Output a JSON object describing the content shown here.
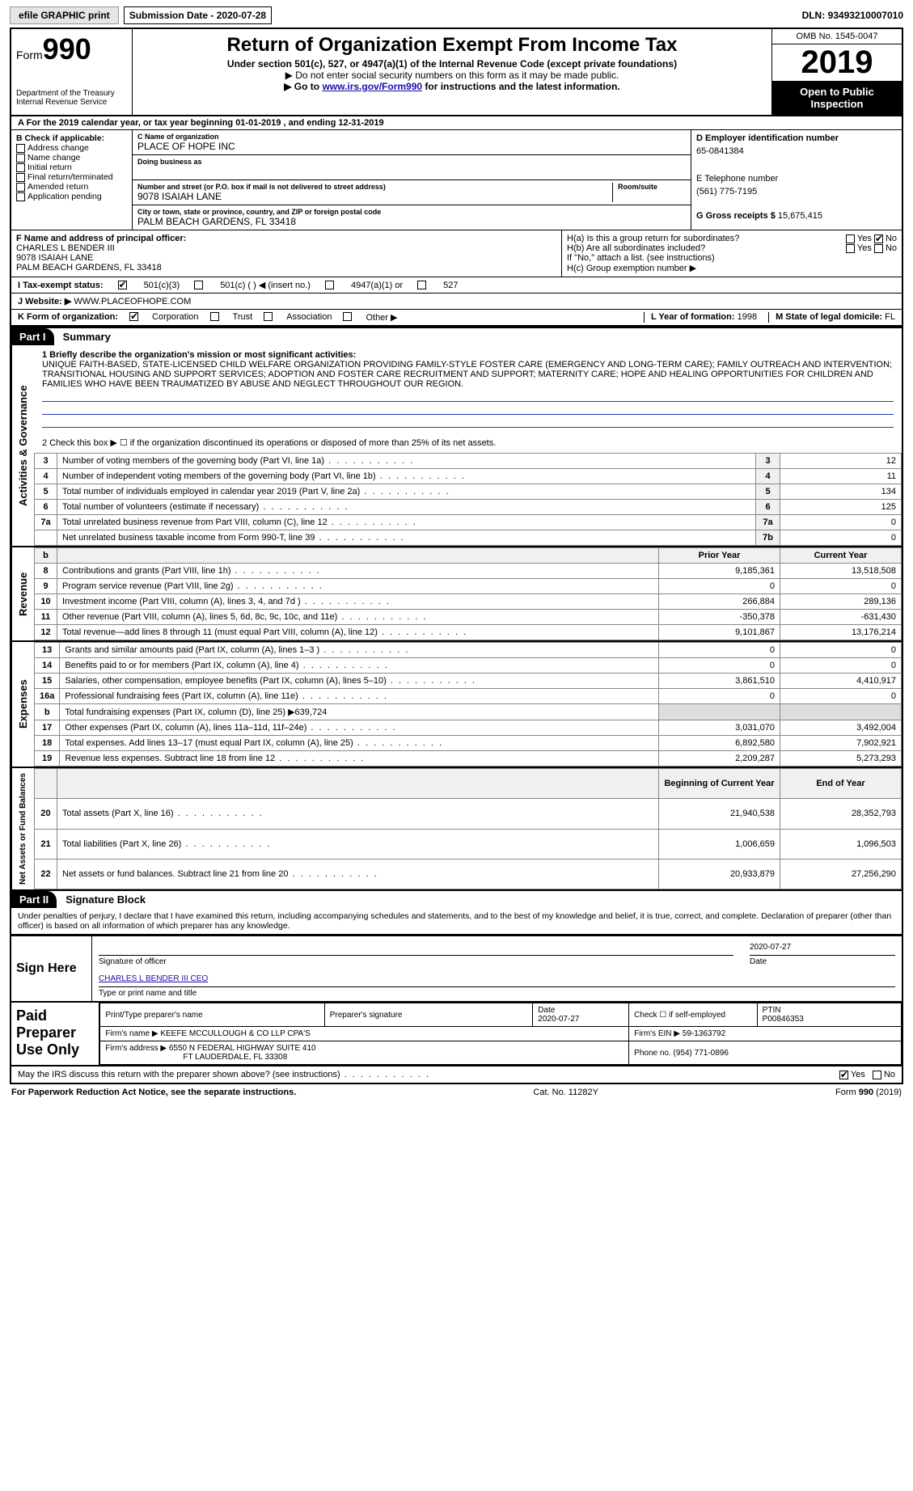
{
  "topbar": {
    "efile": "efile GRAPHIC print",
    "subdate_label": "Submission Date - ",
    "subdate": "2020-07-28",
    "dln_label": "DLN: ",
    "dln": "93493210007010"
  },
  "header": {
    "form_prefix": "Form",
    "form_no": "990",
    "dept": "Department of the Treasury\nInternal Revenue Service",
    "title": "Return of Organization Exempt From Income Tax",
    "sub1": "Under section 501(c), 527, or 4947(a)(1) of the Internal Revenue Code (except private foundations)",
    "sub2": "▶ Do not enter social security numbers on this form as it may be made public.",
    "sub3_pre": "▶ Go to ",
    "sub3_link": "www.irs.gov/Form990",
    "sub3_post": " for instructions and the latest information.",
    "omb": "OMB No. 1545-0047",
    "year": "2019",
    "open": "Open to Public Inspection"
  },
  "rowA": "A For the 2019 calendar year, or tax year beginning 01-01-2019     , and ending 12-31-2019",
  "boxB": {
    "title": "B Check if applicable:",
    "items": [
      "Address change",
      "Name change",
      "Initial return",
      "Final return/terminated",
      "Amended return",
      "Application pending"
    ]
  },
  "boxC": {
    "name_label": "C Name of organization",
    "name": "PLACE OF HOPE INC",
    "dba_label": "Doing business as",
    "addr_label": "Number and street (or P.O. box if mail is not delivered to street address)",
    "addr": "9078 ISAIAH LANE",
    "room_label": "Room/suite",
    "city_label": "City or town, state or province, country, and ZIP or foreign postal code",
    "city": "PALM BEACH GARDENS, FL  33418"
  },
  "boxD": {
    "label": "D Employer identification number",
    "val": "65-0841384"
  },
  "boxE": {
    "label": "E Telephone number",
    "val": "(561) 775-7195"
  },
  "boxG": {
    "label": "G Gross receipts $ ",
    "val": "15,675,415"
  },
  "boxF": {
    "label": "F  Name and address of principal officer:",
    "name": "CHARLES L BENDER III",
    "addr1": "9078 ISAIAH LANE",
    "addr2": "PALM BEACH GARDENS, FL  33418"
  },
  "boxH": {
    "a": "H(a)  Is this a group return for subordinates?",
    "b": "H(b)  Are all subordinates included?",
    "bnote": "If \"No,\" attach a list. (see instructions)",
    "c": "H(c)  Group exemption number ▶"
  },
  "rowI": {
    "label": "I   Tax-exempt status:",
    "opts": [
      "501(c)(3)",
      "501(c) (  ) ◀ (insert no.)",
      "4947(a)(1) or",
      "527"
    ]
  },
  "rowJ": {
    "label": "J   Website: ▶ ",
    "val": "WWW.PLACEOFHOPE.COM"
  },
  "rowK": {
    "label": "K Form of organization:",
    "opts": [
      "Corporation",
      "Trust",
      "Association",
      "Other ▶"
    ]
  },
  "rowL": {
    "label": "L Year of formation: ",
    "val": "1998"
  },
  "rowM": {
    "label": "M State of legal domicile: ",
    "val": "FL"
  },
  "part1": {
    "hdr": "Part I",
    "title": "Summary",
    "line1_label": "1  Briefly describe the organization's mission or most significant activities:",
    "mission": "UNIQUE FAITH-BASED, STATE-LICENSED CHILD WELFARE ORGANIZATION PROVIDING FAMILY-STYLE FOSTER CARE (EMERGENCY AND LONG-TERM CARE); FAMILY OUTREACH AND INTERVENTION; TRANSITIONAL HOUSING AND SUPPORT SERVICES; ADOPTION AND FOSTER CARE RECRUITMENT AND SUPPORT; MATERNITY CARE; HOPE AND HEALING OPPORTUNITIES FOR CHILDREN AND FAMILIES WHO HAVE BEEN TRAUMATIZED BY ABUSE AND NEGLECT THROUGHOUT OUR REGION.",
    "line2": "2   Check this box ▶ ☐  if the organization discontinued its operations or disposed of more than 25% of its net assets.",
    "gov_rows": [
      {
        "n": "3",
        "t": "Number of voting members of the governing body (Part VI, line 1a)",
        "c": "3",
        "v": "12"
      },
      {
        "n": "4",
        "t": "Number of independent voting members of the governing body (Part VI, line 1b)",
        "c": "4",
        "v": "11"
      },
      {
        "n": "5",
        "t": "Total number of individuals employed in calendar year 2019 (Part V, line 2a)",
        "c": "5",
        "v": "134"
      },
      {
        "n": "6",
        "t": "Total number of volunteers (estimate if necessary)",
        "c": "6",
        "v": "125"
      },
      {
        "n": "7a",
        "t": "Total unrelated business revenue from Part VIII, column (C), line 12",
        "c": "7a",
        "v": "0"
      },
      {
        "n": "",
        "t": "Net unrelated business taxable income from Form 990-T, line 39",
        "c": "7b",
        "v": "0"
      }
    ],
    "rev_hdr": [
      "b",
      "",
      "Prior Year",
      "Current Year"
    ],
    "rev_rows": [
      {
        "n": "8",
        "t": "Contributions and grants (Part VIII, line 1h)",
        "p": "9,185,361",
        "c": "13,518,508"
      },
      {
        "n": "9",
        "t": "Program service revenue (Part VIII, line 2g)",
        "p": "0",
        "c": "0"
      },
      {
        "n": "10",
        "t": "Investment income (Part VIII, column (A), lines 3, 4, and 7d )",
        "p": "266,884",
        "c": "289,136"
      },
      {
        "n": "11",
        "t": "Other revenue (Part VIII, column (A), lines 5, 6d, 8c, 9c, 10c, and 11e)",
        "p": "-350,378",
        "c": "-631,430"
      },
      {
        "n": "12",
        "t": "Total revenue—add lines 8 through 11 (must equal Part VIII, column (A), line 12)",
        "p": "9,101,867",
        "c": "13,176,214"
      }
    ],
    "exp_rows": [
      {
        "n": "13",
        "t": "Grants and similar amounts paid (Part IX, column (A), lines 1–3 )",
        "p": "0",
        "c": "0"
      },
      {
        "n": "14",
        "t": "Benefits paid to or for members (Part IX, column (A), line 4)",
        "p": "0",
        "c": "0"
      },
      {
        "n": "15",
        "t": "Salaries, other compensation, employee benefits (Part IX, column (A), lines 5–10)",
        "p": "3,861,510",
        "c": "4,410,917"
      },
      {
        "n": "16a",
        "t": "Professional fundraising fees (Part IX, column (A), line 11e)",
        "p": "0",
        "c": "0"
      },
      {
        "n": "b",
        "t": "Total fundraising expenses (Part IX, column (D), line 25) ▶639,724",
        "p": "",
        "c": ""
      },
      {
        "n": "17",
        "t": "Other expenses (Part IX, column (A), lines 11a–11d, 11f–24e)",
        "p": "3,031,070",
        "c": "3,492,004"
      },
      {
        "n": "18",
        "t": "Total expenses. Add lines 13–17 (must equal Part IX, column (A), line 25)",
        "p": "6,892,580",
        "c": "7,902,921"
      },
      {
        "n": "19",
        "t": "Revenue less expenses. Subtract line 18 from line 12",
        "p": "2,209,287",
        "c": "5,273,293"
      }
    ],
    "net_hdr": [
      "",
      "",
      "Beginning of Current Year",
      "End of Year"
    ],
    "net_rows": [
      {
        "n": "20",
        "t": "Total assets (Part X, line 16)",
        "p": "21,940,538",
        "c": "28,352,793"
      },
      {
        "n": "21",
        "t": "Total liabilities (Part X, line 26)",
        "p": "1,006,659",
        "c": "1,096,503"
      },
      {
        "n": "22",
        "t": "Net assets or fund balances. Subtract line 21 from line 20",
        "p": "20,933,879",
        "c": "27,256,290"
      }
    ],
    "side_gov": "Activities & Governance",
    "side_rev": "Revenue",
    "side_exp": "Expenses",
    "side_net": "Net Assets or Fund Balances"
  },
  "part2": {
    "hdr": "Part II",
    "title": "Signature Block",
    "perjury": "Under penalties of perjury, I declare that I have examined this return, including accompanying schedules and statements, and to the best of my knowledge and belief, it is true, correct, and complete. Declaration of preparer (other than officer) is based on all information of which preparer has any knowledge.",
    "sign_here": "Sign Here",
    "sig_of_officer": "Signature of officer",
    "sig_date": "2020-07-27",
    "officer_name": "CHARLES L BENDER III CEO",
    "officer_sub": "Type or print name and title",
    "paid": "Paid Preparer Use Only",
    "prep_cols": [
      "Print/Type preparer's name",
      "Preparer's signature",
      "Date",
      "Check ☐ if self-employed",
      "PTIN"
    ],
    "prep_date": "2020-07-27",
    "ptin": "P00846353",
    "firm_name_label": "Firm's name    ▶ ",
    "firm_name": "KEEFE MCCULLOUGH & CO LLP CPA'S",
    "firm_ein_label": "Firm's EIN ▶ ",
    "firm_ein": "59-1363792",
    "firm_addr_label": "Firm's address ▶ ",
    "firm_addr1": "6550 N FEDERAL HIGHWAY SUITE 410",
    "firm_addr2": "FT LAUDERDALE, FL  33308",
    "firm_phone_label": "Phone no. ",
    "firm_phone": "(954) 771-0896",
    "discuss": "May the IRS discuss this return with the preparer shown above? (see instructions)"
  },
  "footer": {
    "left": "For Paperwork Reduction Act Notice, see the separate instructions.",
    "mid": "Cat. No. 11282Y",
    "right": "Form 990 (2019)"
  },
  "yes": "Yes",
  "no": "No",
  "date_label": "Date"
}
